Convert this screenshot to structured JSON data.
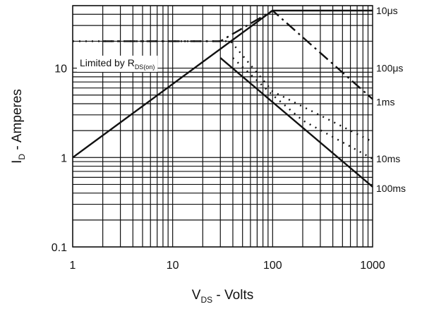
{
  "chart_data": {
    "type": "line",
    "scale": "log-log",
    "grid": true,
    "xlabel": {
      "main": "V",
      "sub": "DS",
      "rest": " - Volts"
    },
    "ylabel": {
      "main": "I",
      "sub": "D",
      "rest": " - Amperes"
    },
    "xlim": [
      1,
      1000
    ],
    "ylim": [
      0.1,
      50
    ],
    "x_ticks": [
      {
        "value": 1,
        "label": "1"
      },
      {
        "value": 10,
        "label": "10"
      },
      {
        "value": 100,
        "label": "100"
      },
      {
        "value": 1000,
        "label": "1000"
      }
    ],
    "y_ticks": [
      {
        "value": 0.1,
        "label": "0.1"
      },
      {
        "value": 1,
        "label": "1"
      },
      {
        "value": 10,
        "label": "10"
      }
    ],
    "annotation": {
      "main": "Limited by R",
      "sub": "DS(on)"
    },
    "series": [
      {
        "name": "10μs",
        "label_value": 44,
        "style": "solid",
        "points": [
          [
            1,
            1
          ],
          [
            100,
            44
          ],
          [
            1000,
            44
          ]
        ]
      },
      {
        "name": "100μs",
        "label_value": 10,
        "style": "dashdot",
        "points": [
          [
            2,
            20
          ],
          [
            30,
            20
          ],
          [
            100,
            44
          ],
          [
            1000,
            4.5
          ]
        ]
      },
      {
        "name": "1ms",
        "label_value": 4.2,
        "style": "dotted",
        "points": [
          [
            1,
            20
          ],
          [
            38,
            20
          ],
          [
            100,
            5.5
          ],
          [
            1000,
            1.5
          ]
        ]
      },
      {
        "name": "10ms",
        "label_value": 0.97,
        "style": "dotted",
        "points": [
          [
            40,
            13
          ],
          [
            100,
            5
          ],
          [
            200,
            2.6
          ],
          [
            1000,
            0.97
          ]
        ]
      },
      {
        "name": "100ms",
        "label_value": 0.45,
        "style": "solid",
        "points": [
          [
            30,
            13
          ],
          [
            1000,
            0.47
          ]
        ]
      }
    ]
  }
}
